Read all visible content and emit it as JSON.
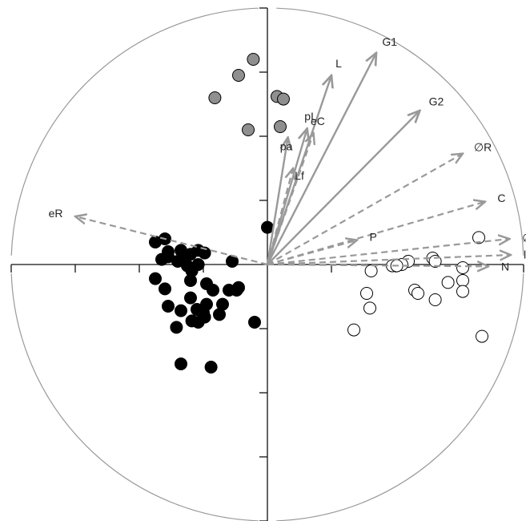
{
  "chart_data": {
    "type": "scatter",
    "title": "",
    "xlabel": "",
    "ylabel": "",
    "xlim": [
      -4,
      4
    ],
    "ylim": [
      -4,
      4
    ],
    "axes_through_origin": true,
    "tick_labels_shown": false,
    "circle_radius": 4,
    "grid": false,
    "colors": {
      "circle": "#9a9a9a",
      "axis": "#111111",
      "vector": "#999999",
      "gray_point_fill": "#8f8f8f",
      "black_point_fill": "#000000",
      "white_point_fill": "#ffffff",
      "point_stroke": "#000000"
    },
    "vectors": [
      {
        "label": "L",
        "x": 1.0,
        "y": 2.95,
        "style": "solid"
      },
      {
        "label": "G1",
        "x": 1.7,
        "y": 3.3,
        "style": "solid"
      },
      {
        "label": "G2",
        "x": 2.38,
        "y": 2.4,
        "style": "solid"
      },
      {
        "label": "pL",
        "x": 0.62,
        "y": 2.12,
        "style": "solid"
      },
      {
        "label": "eC",
        "x": 0.72,
        "y": 2.05,
        "style": "dashed"
      },
      {
        "label": "pa",
        "x": 0.32,
        "y": 1.98,
        "style": "solid"
      },
      {
        "label": "Lf",
        "x": 0.4,
        "y": 1.5,
        "style": "dashed"
      },
      {
        "label": "∅R",
        "x": 3.05,
        "y": 1.73,
        "style": "dashed"
      },
      {
        "label": "C",
        "x": 3.4,
        "y": 0.98,
        "style": "dashed"
      },
      {
        "label": "∅C",
        "x": 3.78,
        "y": 0.4,
        "style": "dashed"
      },
      {
        "label": "lf",
        "x": 3.8,
        "y": 0.15,
        "style": "dashed"
      },
      {
        "label": "N",
        "x": 3.45,
        "y": -0.03,
        "style": "dashed"
      },
      {
        "label": "P",
        "x": 1.4,
        "y": 0.38,
        "style": "dashed"
      },
      {
        "label": "eR",
        "x": -3.0,
        "y": 0.75,
        "style": "dashed"
      }
    ],
    "series": [
      {
        "group": "gray",
        "points": [
          [
            -0.22,
            3.2
          ],
          [
            -0.45,
            2.95
          ],
          [
            -0.82,
            2.6
          ],
          [
            0.15,
            2.62
          ],
          [
            0.25,
            2.58
          ],
          [
            -0.3,
            2.1
          ],
          [
            0.2,
            2.15
          ]
        ]
      },
      {
        "group": "black",
        "points": [
          [
            0.0,
            0.58
          ],
          [
            -1.75,
            0.35
          ],
          [
            -1.6,
            0.4
          ],
          [
            -1.55,
            0.2
          ],
          [
            -1.4,
            0.05
          ],
          [
            -1.3,
            0.1
          ],
          [
            -1.35,
            0.22
          ],
          [
            -1.2,
            0.16
          ],
          [
            -1.08,
            0.22
          ],
          [
            -0.98,
            0.18
          ],
          [
            -1.65,
            0.08
          ],
          [
            -1.55,
            0.12
          ],
          [
            -1.25,
            -0.02
          ],
          [
            -1.18,
            -0.1
          ],
          [
            -1.08,
            0.0
          ],
          [
            -0.55,
            0.05
          ],
          [
            -1.75,
            -0.22
          ],
          [
            -1.6,
            -0.38
          ],
          [
            -1.2,
            -0.25
          ],
          [
            -0.95,
            -0.3
          ],
          [
            -0.85,
            -0.4
          ],
          [
            -0.6,
            -0.4
          ],
          [
            -0.48,
            -0.4
          ],
          [
            -0.45,
            -0.36
          ],
          [
            -1.55,
            -0.65
          ],
          [
            -1.35,
            -0.72
          ],
          [
            -1.2,
            -0.52
          ],
          [
            -1.1,
            -0.7
          ],
          [
            -1.0,
            -0.75
          ],
          [
            -0.95,
            -0.62
          ],
          [
            -1.08,
            -0.9
          ],
          [
            -1.18,
            -0.88
          ],
          [
            -0.98,
            -0.82
          ],
          [
            -0.75,
            -0.78
          ],
          [
            -0.7,
            -0.62
          ],
          [
            -1.42,
            -0.98
          ],
          [
            -0.2,
            -0.9
          ],
          [
            -1.35,
            -1.55
          ],
          [
            -0.88,
            -1.6
          ]
        ]
      },
      {
        "group": "white",
        "points": [
          [
            3.3,
            0.42
          ],
          [
            2.58,
            0.1
          ],
          [
            2.62,
            0.05
          ],
          [
            2.2,
            0.05
          ],
          [
            2.1,
            0.0
          ],
          [
            1.95,
            -0.02
          ],
          [
            2.02,
            -0.02
          ],
          [
            1.62,
            -0.1
          ],
          [
            3.05,
            -0.05
          ],
          [
            2.82,
            -0.28
          ],
          [
            3.05,
            -0.25
          ],
          [
            2.3,
            -0.4
          ],
          [
            2.35,
            -0.45
          ],
          [
            3.05,
            -0.42
          ],
          [
            2.62,
            -0.55
          ],
          [
            1.55,
            -0.45
          ],
          [
            1.6,
            -0.68
          ],
          [
            1.35,
            -1.02
          ],
          [
            3.35,
            -1.12
          ]
        ]
      }
    ]
  }
}
